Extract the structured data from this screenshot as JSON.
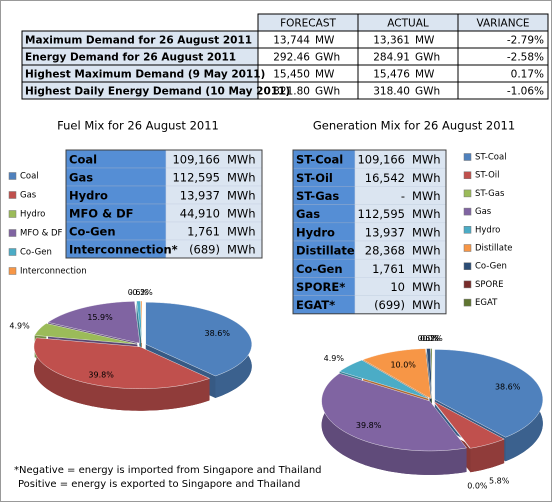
{
  "summary_table": {
    "header": [
      "FORECAST",
      "ACTUAL",
      "VARIANCE"
    ],
    "rows": [
      {
        "label": "Maximum Demand for 26 August 2011",
        "forecast": "13,744",
        "forecast_unit": "MW",
        "actual": "13,361",
        "actual_unit": "MW",
        "variance": "-2.79%"
      },
      {
        "label": "Energy Demand for 26 August 2011",
        "forecast": "292.46",
        "forecast_unit": "GWh",
        "actual": "284.91",
        "actual_unit": "GWh",
        "variance": "-2.58%"
      },
      {
        "label": "Highest Maximum Demand (9 May 2011)",
        "forecast": "15,450",
        "forecast_unit": "MW",
        "actual": "15,476",
        "actual_unit": "MW",
        "variance": "0.17%"
      },
      {
        "label": "Highest Daily Energy Demand (10 May 2011)",
        "forecast": "321.80",
        "forecast_unit": "GWh",
        "actual": "318.40",
        "actual_unit": "GWh",
        "variance": "-1.06%"
      }
    ]
  },
  "fuel_mix_table": {
    "rows": [
      [
        "Coal",
        "109,166",
        "MWh"
      ],
      [
        "Gas",
        "112,595",
        "MWh"
      ],
      [
        "Hydro",
        "13,937",
        "MWh"
      ],
      [
        "MFO & DF",
        "44,910",
        "MWh"
      ],
      [
        "Co-Gen",
        "1,761",
        "MWh"
      ],
      [
        "Interconnection*",
        "(689)",
        "MWh"
      ]
    ]
  },
  "generation_mix_table": {
    "rows": [
      [
        "ST-Coal",
        "109,166",
        "MWh"
      ],
      [
        "ST-Oil",
        "16,542",
        "MWh"
      ],
      [
        "ST-Gas",
        "-",
        "MWh"
      ],
      [
        "Gas",
        "112,595",
        "MWh"
      ],
      [
        "Hydro",
        "13,937",
        "MWh"
      ],
      [
        "Distillate",
        "28,368",
        "MWh"
      ],
      [
        "Co-Gen",
        "1,761",
        "MWh"
      ],
      [
        "SPORE*",
        "10",
        "MWh"
      ],
      [
        "EGAT*",
        "(699)",
        "MWh"
      ]
    ]
  },
  "chart_data": [
    {
      "type": "pie",
      "title": "Fuel Mix for 26 August 2011",
      "categories": [
        "Coal",
        "Gas",
        "Hydro",
        "MFO & DF",
        "Co-Gen",
        "Interconnection"
      ],
      "values": [
        38.6,
        39.8,
        4.9,
        15.9,
        0.6,
        -0.2
      ],
      "value_labels": [
        "38.6%",
        "39.8%",
        "4.9%",
        "15.9%",
        "0.6%",
        "-0.2%"
      ],
      "colors": [
        "#4f81bd",
        "#c0504d",
        "#9bbb59",
        "#8064a2",
        "#4bacc6",
        "#f79646"
      ]
    },
    {
      "type": "pie",
      "title": "Generation Mix for 26 August 2011",
      "categories": [
        "ST-Coal",
        "ST-Oil",
        "ST-Gas",
        "Gas",
        "Hydro",
        "Distillate",
        "Co-Gen",
        "SPORE",
        "EGAT"
      ],
      "values": [
        38.6,
        5.8,
        0.0,
        39.8,
        4.9,
        10.0,
        0.6,
        0.0,
        -0.2
      ],
      "value_labels": [
        "38.6%",
        "5.8%",
        "0.0%",
        "39.8%",
        "4.9%",
        "10.0%",
        "0.6%",
        "0.0%",
        "-0.2%"
      ],
      "colors": [
        "#4f81bd",
        "#c0504d",
        "#9bbb59",
        "#8064a2",
        "#4bacc6",
        "#f79646",
        "#2c4d75",
        "#772c2a",
        "#5f7530"
      ]
    }
  ],
  "notes": [
    "*Negative = energy is imported from Singapore and Thailand",
    "Positive = energy is exported to Singapore and Thailand"
  ]
}
